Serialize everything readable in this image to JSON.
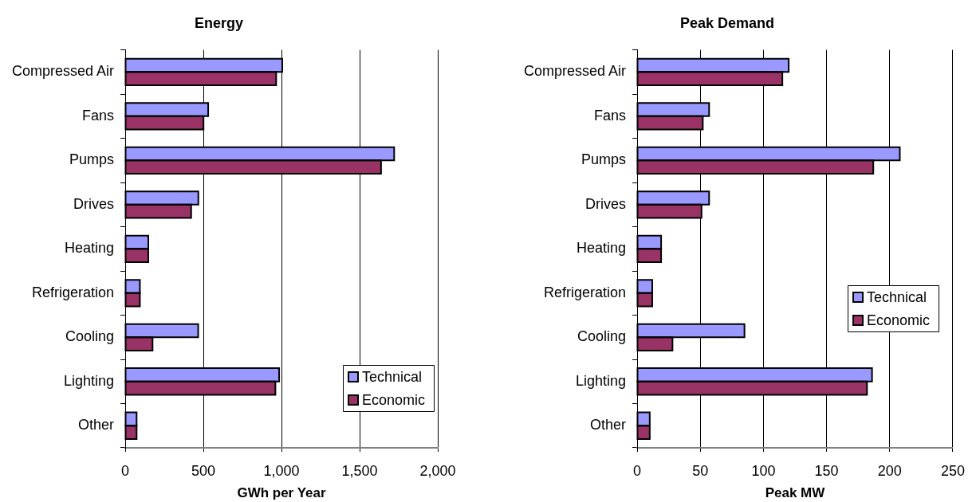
{
  "chart_data": [
    {
      "type": "bar",
      "orientation": "horizontal",
      "title": "Energy",
      "xlabel": "GWh per Year",
      "categories": [
        "Compressed Air",
        "Fans",
        "Pumps",
        "Drives",
        "Heating",
        "Refrigeration",
        "Cooling",
        "Lighting",
        "Other"
      ],
      "series": [
        {
          "name": "Technical",
          "color": "#9999ff",
          "values": [
            1005,
            531,
            1721,
            468,
            148,
            94,
            467,
            985,
            73
          ]
        },
        {
          "name": "Economic",
          "color": "#993366",
          "values": [
            966,
            501,
            1637,
            422,
            148,
            94,
            175,
            961,
            73
          ]
        }
      ],
      "xlim": [
        0,
        2000
      ],
      "xticks": [
        0,
        500,
        {
          "value": 1000,
          "label": "1,000"
        },
        {
          "value": 1500,
          "label": "1,500"
        },
        {
          "value": 2000,
          "label": "2,000"
        }
      ],
      "grid": "x",
      "legend": "bottom right"
    },
    {
      "type": "bar",
      "orientation": "horizontal",
      "title": "Peak Demand",
      "xlabel": "Peak MW",
      "categories": [
        "Compressed Air",
        "Fans",
        "Pumps",
        "Drives",
        "Heating",
        "Refrigeration",
        "Cooling",
        "Lighting",
        "Other"
      ],
      "series": [
        {
          "name": "Technical",
          "color": "#9999ff",
          "values": [
            120,
            57,
            208,
            57,
            19,
            12,
            85,
            186,
            10
          ]
        },
        {
          "name": "Economic",
          "color": "#993366",
          "values": [
            115,
            52,
            187,
            51,
            19,
            12,
            28,
            182,
            10
          ]
        }
      ],
      "xlim": [
        0,
        250
      ],
      "xticks": [
        0,
        50,
        100,
        150,
        200,
        250
      ],
      "grid": "x",
      "legend": "right"
    }
  ]
}
